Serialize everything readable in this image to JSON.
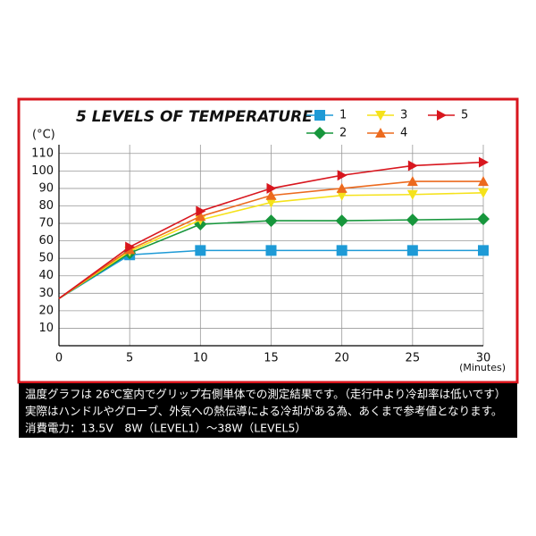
{
  "chart_data": {
    "type": "line",
    "title": "5 LEVELS OF TEMPERATURE",
    "y_label": "(°C)",
    "x_label": "(Minutes)",
    "x": [
      0,
      5,
      10,
      15,
      20,
      25,
      30
    ],
    "xlim": [
      0,
      30
    ],
    "xticks": [
      0,
      5,
      10,
      15,
      20,
      25,
      30
    ],
    "ylim": [
      0,
      115
    ],
    "yticks": [
      10,
      20,
      30,
      40,
      50,
      60,
      70,
      80,
      90,
      100,
      110
    ],
    "grid": true,
    "series": [
      {
        "name": "1",
        "color": "#1e9ad6",
        "marker": "square",
        "values": [
          27,
          52,
          54.5,
          54.5,
          54.5,
          54.5,
          54.5
        ]
      },
      {
        "name": "2",
        "color": "#17963c",
        "marker": "diamond",
        "values": [
          27,
          53,
          69.5,
          71.5,
          71.5,
          72,
          72.5
        ]
      },
      {
        "name": "3",
        "color": "#f5e21b",
        "marker": "triangle-down",
        "values": [
          27,
          54,
          72,
          82,
          86,
          86.5,
          87.5
        ]
      },
      {
        "name": "4",
        "color": "#ec6a1e",
        "marker": "triangle-up",
        "values": [
          27,
          55,
          74,
          86,
          90,
          94,
          94
        ]
      },
      {
        "name": "5",
        "color": "#d8161e",
        "marker": "triangle-right",
        "values": [
          27,
          56.5,
          77,
          90,
          97.5,
          103,
          105
        ]
      }
    ],
    "notes": [
      "温度グラフは 26℃室内でグリップ右側単体での測定結果です。（走行中より冷却率は低いです）",
      "実際はハンドルやグローブ、外気への熱伝導による冷却がある為、あくまで参考値となります。",
      "消費電力：13.5V　8W（LEVEL1）～38W（LEVEL5）"
    ]
  }
}
